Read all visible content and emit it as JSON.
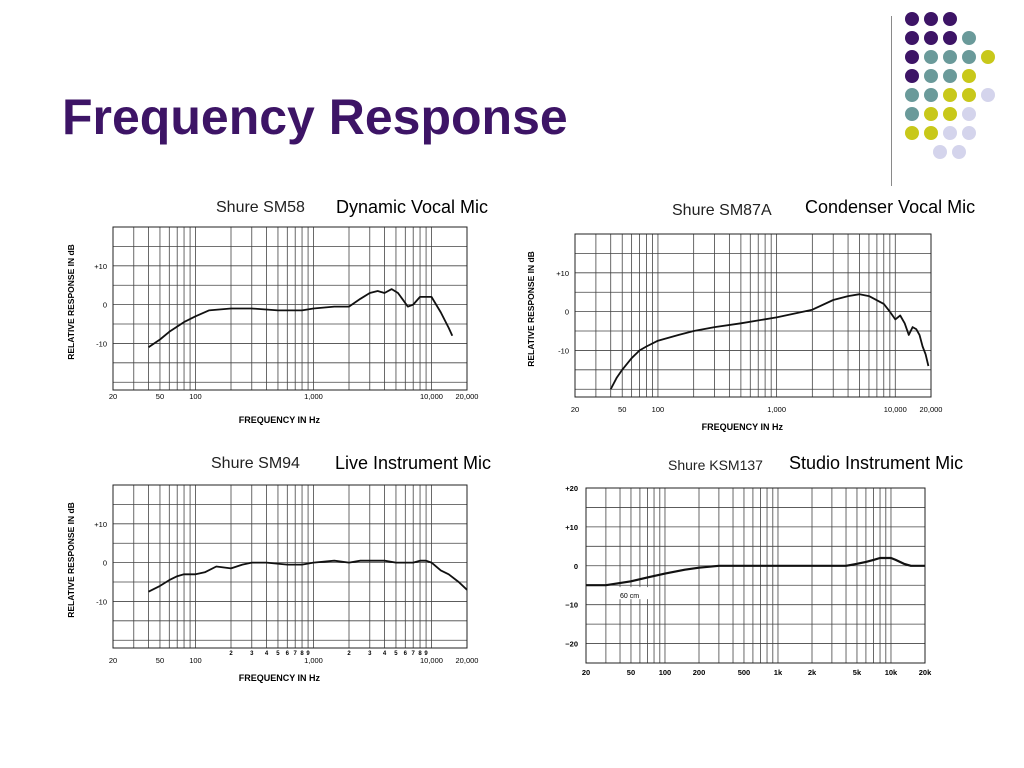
{
  "slide": {
    "title": "Frequency Response",
    "colors": {
      "title": "#3d1466",
      "purple": "#3d1466",
      "teal": "#6a9a9a",
      "yellow": "#c8c81a",
      "lavender": "#d4d4ec"
    }
  },
  "decor": {
    "dot_rows": [
      [
        "purple",
        "purple",
        "purple"
      ],
      [
        "purple",
        "purple",
        "purple",
        "teal"
      ],
      [
        "purple",
        "teal",
        "teal",
        "teal",
        "yellow"
      ],
      [
        "purple",
        "teal",
        "teal",
        "yellow"
      ],
      [
        "teal",
        "teal",
        "yellow",
        "yellow",
        "lavender"
      ],
      [
        "teal",
        "yellow",
        "yellow",
        "lavender"
      ],
      [
        "yellow",
        "yellow",
        "lavender",
        "lavender"
      ],
      [
        "lavender",
        "lavender"
      ]
    ]
  },
  "panels": [
    {
      "model": "Shure SM58",
      "description": "Dynamic Vocal Mic"
    },
    {
      "model": "Shure SM87A",
      "description": "Condenser Vocal Mic"
    },
    {
      "model": "Shure SM94",
      "description": "Live Instrument Mic"
    },
    {
      "model": "Shure KSM137",
      "description": "Studio Instrument Mic"
    }
  ],
  "chart_data": [
    {
      "type": "line",
      "title": "Shure SM58",
      "xlabel": "FREQUENCY IN Hz",
      "ylabel": "RELATIVE RESPONSE IN dB",
      "xscale": "log",
      "xlim": [
        20,
        20000
      ],
      "ylim": [
        -22,
        20
      ],
      "y_ticks": [
        {
          "v": 10,
          "t": "+10"
        },
        {
          "v": 0,
          "t": "0"
        },
        {
          "v": -10,
          "t": "-10"
        }
      ],
      "x_ticks": [
        {
          "v": 20,
          "t": "20"
        },
        {
          "v": 50,
          "t": "50"
        },
        {
          "v": 100,
          "t": "100"
        },
        {
          "v": 1000,
          "t": "1,000"
        },
        {
          "v": 10000,
          "t": "10,000"
        },
        {
          "v": 20000,
          "t": "20,000"
        }
      ],
      "minor_ticks": [],
      "grid": true,
      "series": [
        {
          "x": [
            40,
            50,
            60,
            80,
            100,
            130,
            200,
            300,
            500,
            800,
            1000,
            1500,
            2000,
            2500,
            3000,
            3500,
            4000,
            4600,
            5200,
            5800,
            6300,
            7000,
            8000,
            10000,
            12000,
            14000,
            15000
          ],
          "y": [
            -11,
            -9,
            -7,
            -4.5,
            -3,
            -1.5,
            -1,
            -1,
            -1.5,
            -1.5,
            -1,
            -0.5,
            -0.5,
            1.5,
            3,
            3.5,
            3,
            4,
            3,
            1,
            -0.5,
            0,
            2,
            2,
            -2,
            -6,
            -8
          ]
        }
      ]
    },
    {
      "type": "line",
      "title": "Shure SM87A",
      "xlabel": "FREQUENCY IN Hz",
      "ylabel": "RELATIVE RESPONSE IN dB",
      "xscale": "log",
      "xlim": [
        20,
        20000
      ],
      "ylim": [
        -22,
        20
      ],
      "y_ticks": [
        {
          "v": 10,
          "t": "+10"
        },
        {
          "v": 0,
          "t": "0"
        },
        {
          "v": -10,
          "t": "-10"
        }
      ],
      "x_ticks": [
        {
          "v": 20,
          "t": "20"
        },
        {
          "v": 50,
          "t": "50"
        },
        {
          "v": 100,
          "t": "100"
        },
        {
          "v": 1000,
          "t": "1,000"
        },
        {
          "v": 10000,
          "t": "10,000"
        },
        {
          "v": 20000,
          "t": "20,000"
        }
      ],
      "minor_ticks": [],
      "grid": true,
      "series": [
        {
          "x": [
            40,
            45,
            50,
            60,
            70,
            80,
            100,
            150,
            200,
            300,
            500,
            1000,
            2000,
            3000,
            4000,
            5000,
            6000,
            8000,
            9000,
            10000,
            11000,
            12000,
            13000,
            14000,
            15000,
            16000,
            17000,
            18000,
            19000
          ],
          "y": [
            -20,
            -17,
            -15,
            -12,
            -10,
            -9,
            -7.5,
            -6,
            -5,
            -4,
            -3,
            -1.5,
            0.5,
            3,
            4,
            4.5,
            4,
            2,
            0,
            -2,
            -1,
            -3,
            -6,
            -4,
            -4.5,
            -6,
            -9,
            -11,
            -14
          ]
        }
      ]
    },
    {
      "type": "line",
      "title": "Shure SM94",
      "xlabel": "FREQUENCY IN Hz",
      "ylabel": "RELATIVE RESPONSE IN dB",
      "xscale": "log",
      "xlim": [
        20,
        20000
      ],
      "ylim": [
        -22,
        20
      ],
      "y_ticks": [
        {
          "v": 10,
          "t": "+10"
        },
        {
          "v": 0,
          "t": "0"
        },
        {
          "v": -10,
          "t": "-10"
        }
      ],
      "x_ticks": [
        {
          "v": 20,
          "t": "20"
        },
        {
          "v": 50,
          "t": "50"
        },
        {
          "v": 100,
          "t": "100"
        },
        {
          "v": 1000,
          "t": "1,000"
        },
        {
          "v": 10000,
          "t": "10,000"
        },
        {
          "v": 20000,
          "t": "20,000"
        }
      ],
      "minor_ticks": [
        {
          "v": 200,
          "t": "2"
        },
        {
          "v": 300,
          "t": "3"
        },
        {
          "v": 400,
          "t": "4"
        },
        {
          "v": 500,
          "t": "5"
        },
        {
          "v": 600,
          "t": "6"
        },
        {
          "v": 700,
          "t": "7"
        },
        {
          "v": 800,
          "t": "8"
        },
        {
          "v": 900,
          "t": "9"
        },
        {
          "v": 2000,
          "t": "2"
        },
        {
          "v": 3000,
          "t": "3"
        },
        {
          "v": 4000,
          "t": "4"
        },
        {
          "v": 5000,
          "t": "5"
        },
        {
          "v": 6000,
          "t": "6"
        },
        {
          "v": 7000,
          "t": "7"
        },
        {
          "v": 8000,
          "t": "8"
        },
        {
          "v": 9000,
          "t": "9"
        }
      ],
      "grid": true,
      "series": [
        {
          "x": [
            40,
            50,
            60,
            70,
            80,
            100,
            120,
            150,
            200,
            250,
            300,
            400,
            600,
            800,
            1000,
            1500,
            2000,
            2500,
            3000,
            4000,
            5000,
            6000,
            7000,
            8000,
            9000,
            10000,
            12000,
            14000,
            17000,
            20000
          ],
          "y": [
            -7.5,
            -6,
            -4.5,
            -3.5,
            -3,
            -3,
            -2.5,
            -1,
            -1.5,
            -0.5,
            0,
            0,
            -0.5,
            -0.5,
            0,
            0.5,
            0,
            0.5,
            0.5,
            0.5,
            0,
            0,
            0,
            0.5,
            0.5,
            0,
            -2,
            -3,
            -5,
            -7
          ]
        }
      ]
    },
    {
      "type": "line",
      "title": "Shure KSM137",
      "xlabel": "",
      "ylabel": "",
      "xscale": "log",
      "xlim": [
        20,
        20000
      ],
      "ylim": [
        -25,
        20
      ],
      "annotation": "60 cm",
      "y_ticks": [
        {
          "v": 20,
          "t": "+20"
        },
        {
          "v": 10,
          "t": "+10"
        },
        {
          "v": 0,
          "t": "0"
        },
        {
          "v": -10,
          "t": "−10"
        },
        {
          "v": -20,
          "t": "−20"
        }
      ],
      "x_ticks": [
        {
          "v": 20,
          "t": "20"
        },
        {
          "v": 50,
          "t": "50"
        },
        {
          "v": 100,
          "t": "100"
        },
        {
          "v": 200,
          "t": "200"
        },
        {
          "v": 500,
          "t": "500"
        },
        {
          "v": 1000,
          "t": "1k"
        },
        {
          "v": 2000,
          "t": "2k"
        },
        {
          "v": 5000,
          "t": "5k"
        },
        {
          "v": 10000,
          "t": "10k"
        },
        {
          "v": 20000,
          "t": "20k"
        }
      ],
      "minor_ticks": [],
      "grid": true,
      "series": [
        {
          "x": [
            20,
            30,
            50,
            70,
            100,
            150,
            200,
            300,
            500,
            1000,
            2000,
            3000,
            4000,
            5000,
            6000,
            7000,
            8000,
            9000,
            10000,
            11000,
            13000,
            15000,
            20000
          ],
          "y": [
            -5,
            -5,
            -4,
            -3,
            -2,
            -1,
            -0.5,
            0,
            0,
            0,
            0,
            0,
            0,
            0.5,
            1,
            1.5,
            2,
            2,
            2,
            1.5,
            0.5,
            0,
            0
          ]
        }
      ]
    }
  ]
}
